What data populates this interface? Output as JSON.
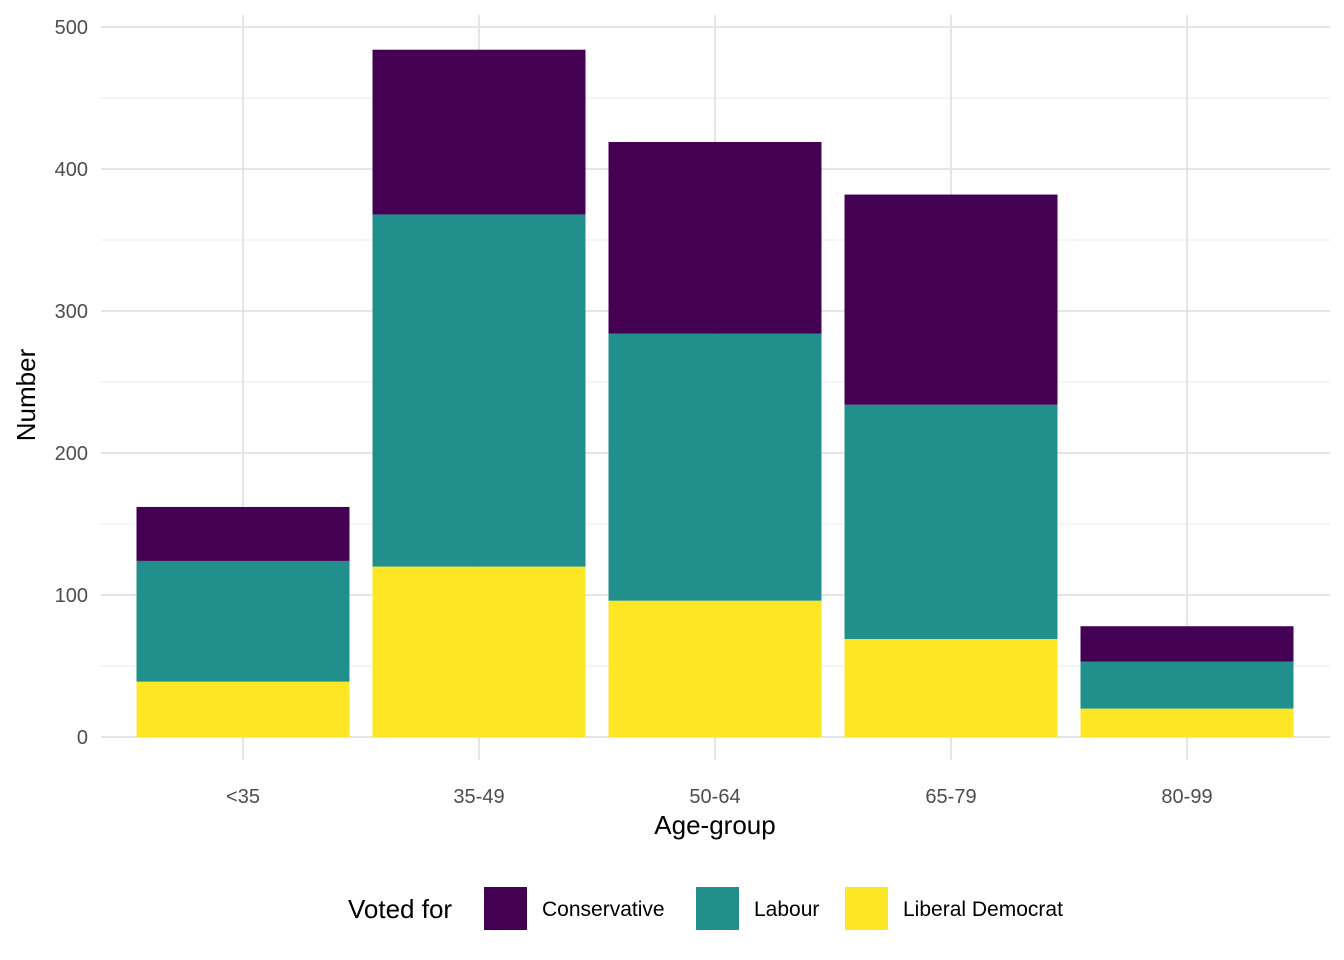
{
  "chart_data": {
    "type": "bar",
    "stacked": true,
    "title": "",
    "xlabel": "Age-group",
    "ylabel": "Number",
    "categories": [
      "<35",
      "35-49",
      "50-64",
      "65-79",
      "80-99"
    ],
    "series": [
      {
        "name": "Liberal Democrat",
        "color": "#FDE725",
        "values": [
          39,
          120,
          96,
          69,
          20
        ]
      },
      {
        "name": "Labour",
        "color": "#21908C",
        "values": [
          85,
          248,
          188,
          165,
          33
        ]
      },
      {
        "name": "Conservative",
        "color": "#440154",
        "values": [
          38,
          116,
          135,
          148,
          25
        ]
      }
    ],
    "ylim": [
      0,
      500
    ],
    "yticks": [
      0,
      100,
      200,
      300,
      400,
      500
    ],
    "grid": true,
    "legend": {
      "title": "Voted for",
      "position": "bottom",
      "order": [
        "Conservative",
        "Labour",
        "Liberal Democrat"
      ]
    }
  }
}
